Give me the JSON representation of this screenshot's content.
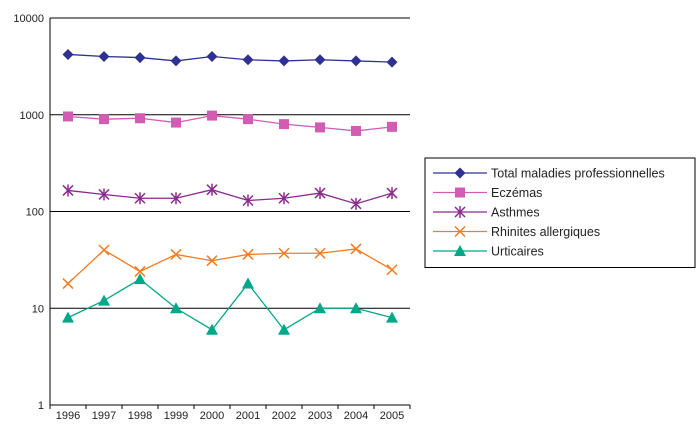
{
  "chart_data": {
    "type": "line",
    "title": "",
    "xlabel": "",
    "ylabel": "",
    "y_scale": "log",
    "ylim": [
      1,
      10000
    ],
    "y_ticks": [
      "1",
      "10",
      "100",
      "1000",
      "10000"
    ],
    "categories": [
      "1996",
      "1997",
      "1998",
      "1999",
      "2000",
      "2001",
      "2002",
      "2003",
      "2004",
      "2005"
    ],
    "grid": "horizontal",
    "legend_position": "right",
    "series": [
      {
        "name": "Total maladies professionnelles",
        "marker": "diamond",
        "color": "#2e3192",
        "values": [
          4200,
          4000,
          3900,
          3600,
          4000,
          3700,
          3600,
          3700,
          3600,
          3500
        ]
      },
      {
        "name": "Eczémas",
        "marker": "square",
        "color": "#d25cb4",
        "values": [
          960,
          900,
          920,
          830,
          980,
          900,
          800,
          740,
          680,
          750
        ]
      },
      {
        "name": "Asthmes",
        "marker": "asterisk",
        "color": "#8a2a8e",
        "values": [
          165,
          150,
          137,
          137,
          168,
          130,
          137,
          155,
          120,
          155
        ]
      },
      {
        "name": "Rhinites allergiques",
        "marker": "x",
        "color": "#f47b20",
        "values": [
          18,
          40,
          24,
          36,
          31,
          36,
          37,
          37,
          41,
          25
        ]
      },
      {
        "name": "Urticaires",
        "marker": "triangle",
        "color": "#00a887",
        "values": [
          8,
          12,
          20,
          10,
          6,
          18,
          6,
          10,
          10,
          8
        ]
      }
    ]
  }
}
